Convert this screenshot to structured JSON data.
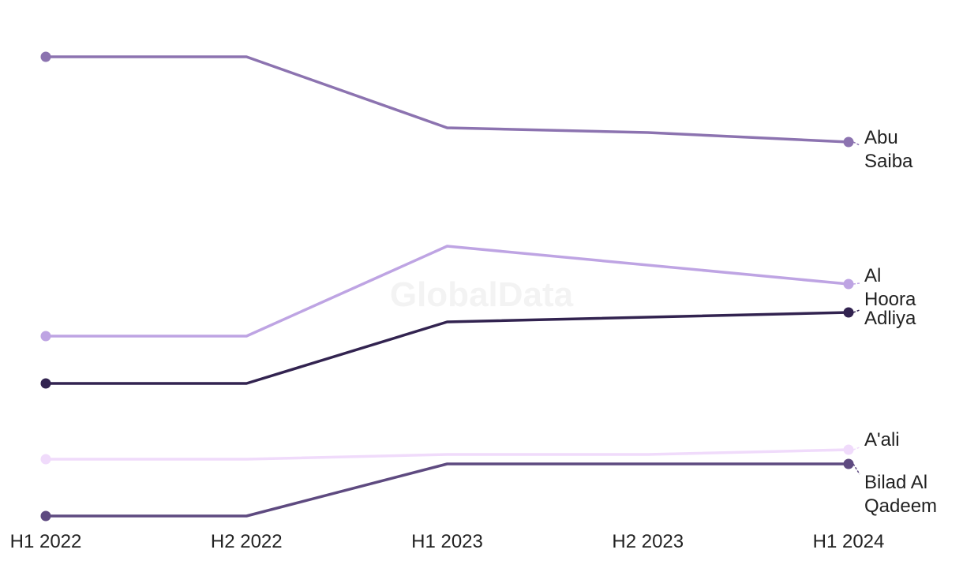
{
  "watermark": "GlobalData",
  "chart_data": {
    "type": "line",
    "categories": [
      "H1 2022",
      "H2 2022",
      "H1 2023",
      "H2 2023",
      "H1 2024"
    ],
    "ylim": [
      0,
      10
    ],
    "grid": false,
    "legend": "direct-labels-right",
    "series": [
      {
        "name": "Abu Saiba",
        "label_lines": [
          "Abu",
          "Saiba"
        ],
        "color": "#8c73b0",
        "values": [
          9.7,
          9.7,
          8.2,
          8.1,
          7.9
        ]
      },
      {
        "name": "Al Hoora",
        "label_lines": [
          "Al",
          "Hoora"
        ],
        "color": "#bea4e3",
        "values": [
          3.8,
          3.8,
          5.7,
          null,
          4.9
        ]
      },
      {
        "name": "Adliya",
        "label_lines": [
          "Adliya"
        ],
        "color": "#322350",
        "values": [
          2.8,
          2.8,
          4.1,
          null,
          4.3
        ]
      },
      {
        "name": "A'ali",
        "label_lines": [
          "A'ali"
        ],
        "color": "#f0dbfb",
        "values": [
          1.2,
          1.2,
          1.3,
          1.3,
          1.4
        ]
      },
      {
        "name": "Bilad Al Qadeem",
        "label_lines": [
          "Bilad Al",
          "Qadeem"
        ],
        "color": "#5e4a80",
        "values": [
          0.0,
          0.0,
          1.1,
          1.1,
          1.1
        ]
      }
    ]
  }
}
